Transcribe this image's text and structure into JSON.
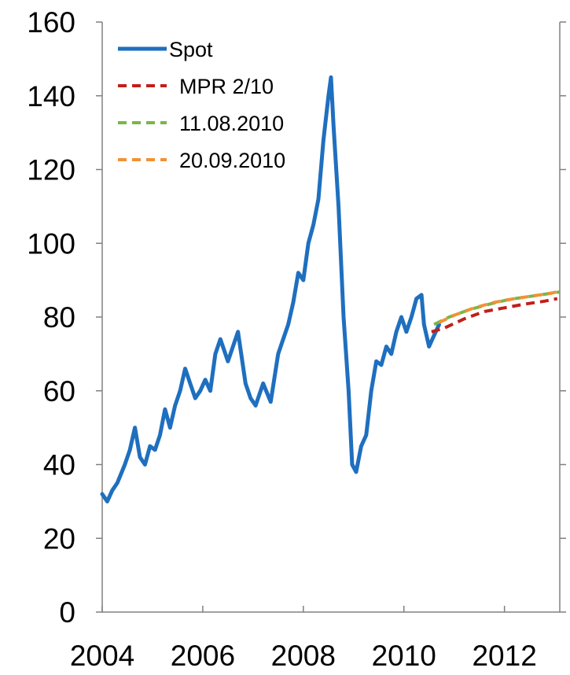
{
  "chart_data": {
    "type": "line",
    "title": "",
    "xlabel": "",
    "ylabel": "",
    "xlim": [
      2004,
      2013.1
    ],
    "ylim": [
      0,
      160
    ],
    "x_ticks": [
      2004,
      2006,
      2008,
      2010,
      2012
    ],
    "x_tick_labels": [
      "2004",
      "2006",
      "2008",
      "2010",
      "2012"
    ],
    "y_ticks": [
      0,
      20,
      40,
      60,
      80,
      100,
      120,
      140,
      160
    ],
    "y_tick_labels": [
      "0",
      "20",
      "40",
      "60",
      "80",
      "100",
      "120",
      "140",
      "160"
    ],
    "grid": false,
    "legend_position": "top-left",
    "series": [
      {
        "name": "Spot",
        "color": "#1f6fbf",
        "style": "solid",
        "x": [
          2004.0,
          2004.1,
          2004.2,
          2004.3,
          2004.45,
          2004.55,
          2004.65,
          2004.75,
          2004.85,
          2004.95,
          2005.05,
          2005.15,
          2005.25,
          2005.35,
          2005.45,
          2005.55,
          2005.65,
          2005.75,
          2005.85,
          2005.95,
          2006.05,
          2006.15,
          2006.25,
          2006.35,
          2006.5,
          2006.6,
          2006.7,
          2006.85,
          2006.95,
          2007.05,
          2007.2,
          2007.35,
          2007.5,
          2007.6,
          2007.7,
          2007.8,
          2007.9,
          2008.0,
          2008.1,
          2008.2,
          2008.3,
          2008.4,
          2008.5,
          2008.55,
          2008.6,
          2008.7,
          2008.8,
          2008.9,
          2008.97,
          2009.05,
          2009.15,
          2009.25,
          2009.35,
          2009.45,
          2009.55,
          2009.65,
          2009.75,
          2009.85,
          2009.95,
          2010.05,
          2010.15,
          2010.25,
          2010.35,
          2010.4,
          2010.5,
          2010.6,
          2010.7
        ],
        "y": [
          32,
          30,
          33,
          35,
          40,
          44,
          50,
          42,
          40,
          45,
          44,
          48,
          55,
          50,
          56,
          60,
          66,
          62,
          58,
          60,
          63,
          60,
          70,
          74,
          68,
          72,
          76,
          62,
          58,
          56,
          62,
          57,
          70,
          74,
          78,
          84,
          92,
          90,
          100,
          105,
          112,
          128,
          140,
          145,
          132,
          110,
          80,
          60,
          40,
          38,
          45,
          48,
          60,
          68,
          67,
          72,
          70,
          76,
          80,
          76,
          80,
          85,
          86,
          78,
          72,
          75,
          78
        ]
      },
      {
        "name": "MPR 2/10",
        "color": "#c0201a",
        "style": "dashed",
        "x": [
          2010.55,
          2010.8,
          2011.2,
          2011.6,
          2012.0,
          2012.4,
          2012.8,
          2013.05
        ],
        "y": [
          76,
          77,
          79.5,
          81.5,
          82.5,
          83.5,
          84.3,
          85
        ]
      },
      {
        "name": "11.08.2010",
        "color": "#7ab648",
        "style": "dashed",
        "x": [
          2010.6,
          2010.9,
          2011.3,
          2011.7,
          2012.1,
          2012.5,
          2012.9,
          2013.1
        ],
        "y": [
          78,
          80,
          82,
          83.5,
          84.8,
          85.6,
          86.4,
          86.8
        ]
      },
      {
        "name": "20.09.2010",
        "color": "#f09236",
        "style": "dashed",
        "x": [
          2010.7,
          2011.0,
          2011.4,
          2011.8,
          2012.2,
          2012.6,
          2012.9,
          2013.1
        ],
        "y": [
          78.5,
          80.5,
          82.5,
          84,
          85,
          85.8,
          86.4,
          87
        ]
      }
    ]
  }
}
